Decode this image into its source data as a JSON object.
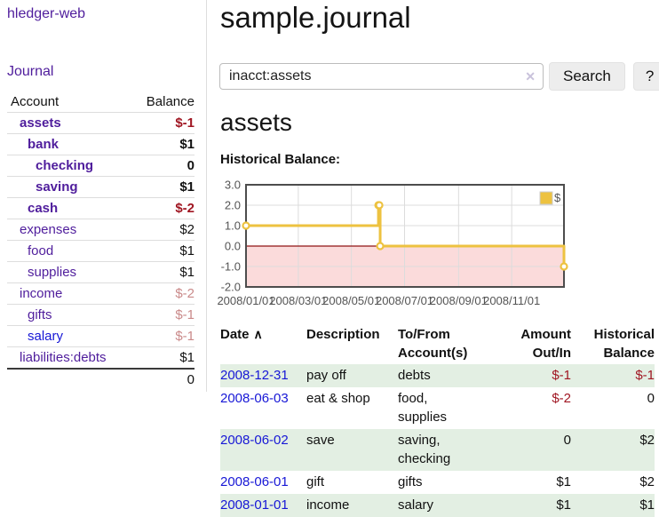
{
  "app": {
    "brand": "hledger-web"
  },
  "sidebar": {
    "journal_link": "Journal",
    "account_header": "Account",
    "balance_header": "Balance",
    "rows": [
      {
        "account": "assets",
        "balance": "$-1",
        "level": 1,
        "strong": true,
        "negative": "strong"
      },
      {
        "account": "bank",
        "balance": "$1",
        "level": 2,
        "strong": true
      },
      {
        "account": "checking",
        "balance": "0",
        "level": 3,
        "strong": true
      },
      {
        "account": "saving",
        "balance": "$1",
        "level": 3,
        "strong": true
      },
      {
        "account": "cash",
        "balance": "$-2",
        "level": 2,
        "strong": true,
        "negative": "strong"
      },
      {
        "account": "expenses",
        "balance": "$2",
        "level": 1
      },
      {
        "account": "food",
        "balance": "$1",
        "level": 2
      },
      {
        "account": "supplies",
        "balance": "$1",
        "level": 2
      },
      {
        "account": "income",
        "balance": "$-2",
        "level": 1,
        "negative": "muted"
      },
      {
        "account": "gifts",
        "balance": "$-1",
        "level": 2,
        "negative": "muted"
      },
      {
        "account": "salary",
        "balance": "$-1",
        "level": 2,
        "negative": "muted",
        "link_color": "blue"
      },
      {
        "account": "liabilities:debts",
        "balance": "$1",
        "level": 1
      }
    ],
    "total": "0"
  },
  "main": {
    "title": "sample.journal",
    "search": {
      "value": "inacct:assets",
      "clear_icon": "✕",
      "button_label": "Search",
      "help_label": "?"
    },
    "account_heading": "assets",
    "chart_label": "Historical Balance:"
  },
  "chart_data": {
    "type": "line",
    "step": true,
    "title": "Historical Balance",
    "legend": [
      {
        "label": "$",
        "color": "#edc240"
      }
    ],
    "legend_position": "top-right",
    "x": [
      "2008-01-01",
      "2008-06-01",
      "2008-06-02",
      "2008-06-03",
      "2008-12-31"
    ],
    "values": [
      1,
      2,
      2,
      0,
      -1
    ],
    "xlim": [
      "2008-01-01",
      "2008-12-31"
    ],
    "ylim": [
      -2,
      3
    ],
    "ytick_values": [
      3,
      2,
      1,
      0,
      -1,
      -2
    ],
    "ytick_labels": [
      "3.0",
      "2.0",
      "1.0",
      "0.0",
      "-1.0",
      "-2.0"
    ],
    "xtick_dates": [
      "2008-01-01",
      "2008-03-01",
      "2008-05-01",
      "2008-07-01",
      "2008-09-01",
      "2008-11-01"
    ],
    "xtick_labels": [
      "2008/01/01",
      "2008/03/01",
      "2008/05/01",
      "2008/07/01",
      "2008/09/01",
      "2008/11/01"
    ],
    "grid": true,
    "negative_region": true
  },
  "register": {
    "headers": {
      "date": "Date",
      "sort_icon": "∧",
      "description": "Description",
      "accounts": "To/From Account(s)",
      "amount": "Amount Out/In",
      "balance": "Historical Balance"
    },
    "rows": [
      {
        "date": "2008-12-31",
        "description": "pay off",
        "accounts": "debts",
        "amount": "$-1",
        "balance": "$-1",
        "amount_negative": true,
        "balance_negative": true
      },
      {
        "date": "2008-06-03",
        "description": "eat & shop",
        "accounts": "food, supplies",
        "amount": "$-2",
        "balance": "0",
        "amount_negative": true,
        "balance_negative": false
      },
      {
        "date": "2008-06-02",
        "description": "save",
        "accounts": "saving, checking",
        "amount": "0",
        "balance": "$2",
        "amount_negative": false,
        "balance_negative": false
      },
      {
        "date": "2008-06-01",
        "description": "gift",
        "accounts": "gifts",
        "amount": "$1",
        "balance": "$2",
        "amount_negative": false,
        "balance_negative": false
      },
      {
        "date": "2008-01-01",
        "description": "income",
        "accounts": "salary",
        "amount": "$1",
        "balance": "$1",
        "amount_negative": false,
        "balance_negative": false
      }
    ]
  },
  "colors": {
    "link_purple": "#4f1d9c",
    "link_blue": "#1717d6",
    "negative_strong": "#a01622",
    "negative_muted": "#ca8a8a",
    "row_green": "#e3efe3",
    "series_yellow": "#edc240",
    "chart_pink": "#fbdbdb",
    "zero_line": "#8f1414",
    "chart_border": "#4d4d4d",
    "grid_line": "#dcdcdc",
    "tick_text": "#545454",
    "button_bg": "#ededed",
    "clear_icon": "#c9c2db"
  }
}
